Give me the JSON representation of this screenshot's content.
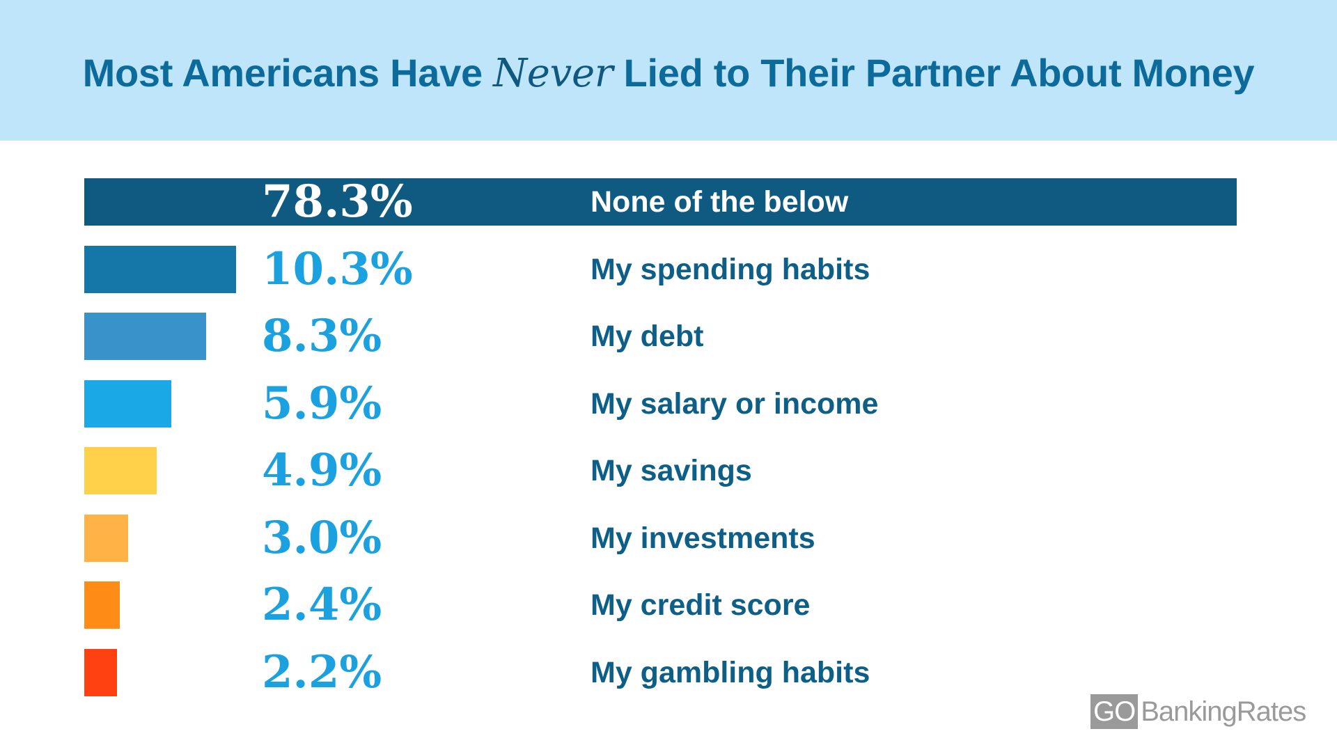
{
  "header": {
    "title_before": "Most Americans Have ",
    "title_emphasis": "Never",
    "title_after": " Lied to Their Partner About Money"
  },
  "chart_data": {
    "type": "bar",
    "orientation": "horizontal",
    "categories": [
      "None of the below",
      "My spending habits",
      "My debt",
      "My salary or income",
      "My savings",
      "My investments",
      "My credit score",
      "My gambling habits"
    ],
    "values": [
      78.3,
      10.3,
      8.3,
      5.9,
      4.9,
      3.0,
      2.4,
      2.2
    ],
    "value_labels": [
      "78.3%",
      "10.3%",
      "8.3%",
      "5.9%",
      "4.9%",
      "3.0%",
      "2.4%",
      "2.2%"
    ],
    "colors": [
      "#0e5a80",
      "#1577a8",
      "#3893cb",
      "#1ba8e6",
      "#ffd04a",
      "#ffb347",
      "#ff8c17",
      "#ff4112"
    ],
    "xlim": [
      0,
      78.3
    ],
    "grid": false,
    "legend": "none"
  },
  "branding": {
    "logo_go": "GO",
    "logo_rest": "BankingRates"
  }
}
